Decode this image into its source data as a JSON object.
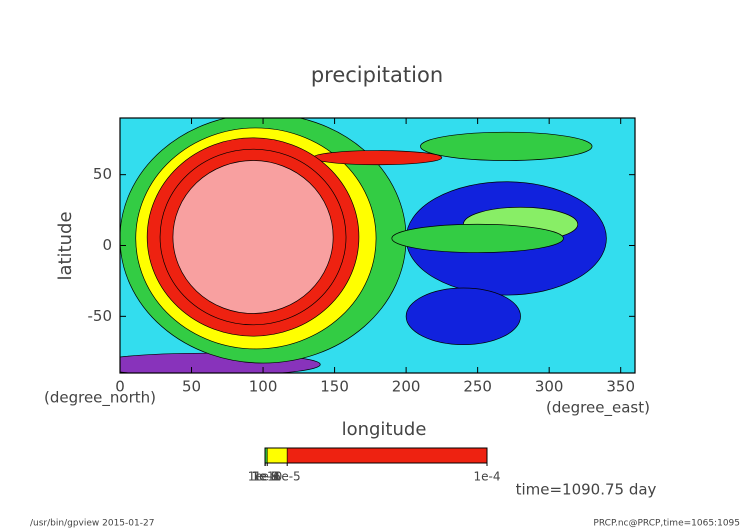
{
  "chart_data": {
    "type": "contour",
    "title": "precipitation",
    "x_label": "longitude",
    "x_unit": "(degree_east)",
    "y_label": "latitude",
    "y_unit": "(degree_north)",
    "xlim": [
      0,
      360
    ],
    "ylim": [
      -90,
      90
    ],
    "xticks": [
      0,
      50,
      100,
      150,
      200,
      250,
      300,
      350
    ],
    "yticks": [
      -50,
      0,
      50
    ],
    "background_color": "#33ddee",
    "levels": [
      0,
      1e-10,
      1e-09,
      1e-08,
      1e-07,
      1e-06,
      1e-05,
      0.0001
    ],
    "level_colors": [
      "#8833bb",
      "#1122dd",
      "#33ddee",
      "#88ee66",
      "#33cc44",
      "#ffff00",
      "#ee2211"
    ],
    "top_color": "#f8a0a0",
    "colorbar_ticks": [
      {
        "value": 1e-10,
        "label": "1e-10"
      },
      {
        "value": 1e-09,
        "label": "1e-9"
      },
      {
        "value": 1e-08,
        "label": "1e-8"
      },
      {
        "value": 1e-07,
        "label": "1e-7"
      },
      {
        "value": 1e-06,
        "label": "1e-6"
      },
      {
        "value": 1e-05,
        "label": "1e-5"
      },
      {
        "value": 0.0001,
        "label": "1e-4"
      }
    ],
    "regions": [
      {
        "value": 1e-10,
        "lon": 270,
        "lat": 5,
        "rx": 70,
        "ry": 40
      },
      {
        "value": 1e-10,
        "lon": 240,
        "lat": -50,
        "rx": 40,
        "ry": 20
      },
      {
        "value": 0,
        "lon": 60,
        "lat": -84,
        "rx": 80,
        "ry": 8
      },
      {
        "value": 1e-08,
        "lon": 280,
        "lat": 15,
        "rx": 40,
        "ry": 12
      },
      {
        "value": 1e-07,
        "lon": 270,
        "lat": 70,
        "rx": 60,
        "ry": 10
      },
      {
        "value": 1e-07,
        "lon": 100,
        "lat": 5,
        "rx": 100,
        "ry": 88
      },
      {
        "value": 1e-07,
        "lon": 250,
        "lat": 5,
        "rx": 60,
        "ry": 10
      },
      {
        "value": 1e-06,
        "lon": 95,
        "lat": 5,
        "rx": 84,
        "ry": 78
      },
      {
        "value": 1e-05,
        "lon": 180,
        "lat": 62,
        "rx": 45,
        "ry": 5
      },
      {
        "value": 1e-05,
        "lon": 93,
        "lat": 6,
        "rx": 74,
        "ry": 70
      },
      {
        "value": 1e-05,
        "lon": 93,
        "lat": 6,
        "rx": 65,
        "ry": 62
      },
      {
        "value": 0.0001,
        "lon": 93,
        "lat": 6,
        "rx": 56,
        "ry": 54
      }
    ],
    "time_label": "time=1090.75 day",
    "footer_left": "/usr/bin/gpview  2015-01-27",
    "footer_right": "PRCP.nc@PRCP,time=1065:1095"
  }
}
